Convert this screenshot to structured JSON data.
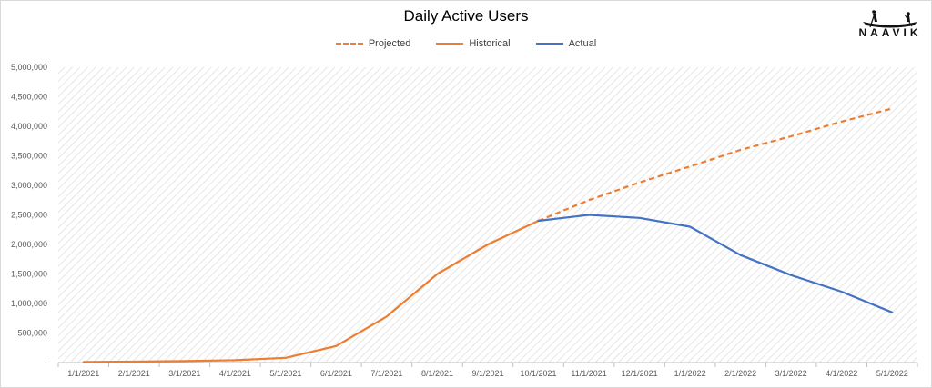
{
  "chart_data": {
    "type": "line",
    "title": "Daily Active Users",
    "xlabel": "",
    "ylabel": "",
    "categories": [
      "1/1/2021",
      "2/1/2021",
      "3/1/2021",
      "4/1/2021",
      "5/1/2021",
      "6/1/2021",
      "7/1/2021",
      "8/1/2021",
      "9/1/2021",
      "10/1/2021",
      "11/1/2021",
      "12/1/2021",
      "1/1/2022",
      "2/1/2022",
      "3/1/2022",
      "4/1/2022",
      "5/1/2022"
    ],
    "ylim": [
      0,
      5000000
    ],
    "yticks": [
      0,
      500000,
      1000000,
      1500000,
      2000000,
      2500000,
      3000000,
      3500000,
      4000000,
      4500000,
      5000000
    ],
    "ytick_labels": [
      "-",
      "500,000",
      "1,000,000",
      "1,500,000",
      "2,000,000",
      "2,500,000",
      "3,000,000",
      "3,500,000",
      "4,000,000",
      "4,500,000",
      "5,000,000"
    ],
    "legend_position": "top",
    "grid": false,
    "series": [
      {
        "name": "Projected",
        "style": "dashed",
        "color": "#ed7d31",
        "values": [
          null,
          null,
          null,
          null,
          null,
          null,
          null,
          null,
          null,
          2400000,
          2750000,
          3050000,
          3320000,
          3600000,
          3830000,
          4080000,
          4300000
        ]
      },
      {
        "name": "Historical",
        "style": "solid",
        "color": "#ed7d31",
        "values": [
          10000,
          15000,
          25000,
          40000,
          80000,
          280000,
          780000,
          1500000,
          2000000,
          2400000,
          null,
          null,
          null,
          null,
          null,
          null,
          null
        ]
      },
      {
        "name": "Actual",
        "style": "solid",
        "color": "#4472c4",
        "values": [
          null,
          null,
          null,
          null,
          null,
          null,
          null,
          null,
          null,
          2400000,
          2500000,
          2450000,
          2300000,
          1820000,
          1480000,
          1200000,
          850000
        ]
      }
    ]
  },
  "brand": {
    "name": "NAAVIK"
  }
}
